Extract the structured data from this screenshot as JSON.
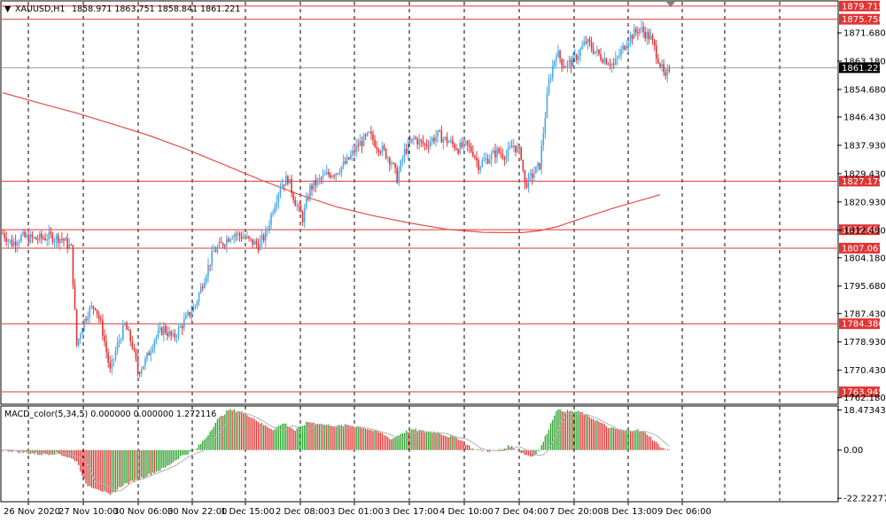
{
  "chart_data": [
    {
      "type": "candlestick",
      "symbol_header": "XAUUSD,H1",
      "ohlc_header": "1858.971 1863.751 1858.841 1861.221",
      "current_price_label": "1861.221",
      "y_ticks": [
        "1871.680",
        "1863.180",
        "1854.680",
        "1846.430",
        "1837.930",
        "1829.430",
        "1820.930",
        "1812.430",
        "1804.180",
        "1795.680",
        "1787.430",
        "1778.930",
        "1770.430",
        "1762.180"
      ],
      "x_tick_labels": [
        "26 Nov 2020",
        "27 Nov 10:00",
        "30 Nov 06:00",
        "30 Nov 22:00",
        "1 Dec 15:00",
        "2 Dec 08:00",
        "3 Dec 01:00",
        "3 Dec 17:00",
        "4 Dec 10:00",
        "7 Dec 04:00",
        "7 Dec 20:00",
        "8 Dec 13:00",
        "9 Dec 06:00"
      ],
      "horizontal_levels": [
        "1879.715",
        "1875.758",
        "1827.179",
        "1812.601",
        "1807.067",
        "1784.386",
        "1763.945"
      ],
      "ylim": [
        1760.5,
        1881.0
      ],
      "up_color": "#4aa8e8",
      "down_color": "#e03535",
      "level_color": "#e03535",
      "ma_color": "#e0504a",
      "ma_points": [
        [
          0,
          1853.7
        ],
        [
          20,
          1850.6
        ],
        [
          40,
          1847.6
        ],
        [
          60,
          1844.2
        ],
        [
          80,
          1840.7
        ],
        [
          100,
          1836.6
        ],
        [
          120,
          1832.0
        ],
        [
          140,
          1827.4
        ],
        [
          160,
          1823.2
        ],
        [
          180,
          1819.5
        ],
        [
          200,
          1816.8
        ],
        [
          220,
          1814.6
        ],
        [
          240,
          1812.7
        ],
        [
          260,
          1811.8
        ],
        [
          280,
          1811.7
        ],
        [
          290,
          1812.3
        ],
        [
          300,
          1813.6
        ],
        [
          310,
          1815.5
        ],
        [
          320,
          1817.3
        ],
        [
          330,
          1819.1
        ],
        [
          340,
          1820.7
        ],
        [
          350,
          1822.3
        ],
        [
          355,
          1823.1
        ]
      ],
      "path_points": [
        [
          0,
          1811.5
        ],
        [
          5,
          1808.5
        ],
        [
          10,
          1810.5
        ],
        [
          15,
          1810.0
        ],
        [
          18,
          1809.8
        ],
        [
          25,
          1810.5
        ],
        [
          32,
          1810.0
        ],
        [
          37,
          1807.0
        ],
        [
          40,
          1778.0
        ],
        [
          43,
          1784.0
        ],
        [
          46,
          1788.0
        ],
        [
          50,
          1790.0
        ],
        [
          54,
          1782.0
        ],
        [
          58,
          1770.0
        ],
        [
          62,
          1778.0
        ],
        [
          66,
          1784.0
        ],
        [
          70,
          1778.0
        ],
        [
          73,
          1770.0
        ],
        [
          77,
          1773.0
        ],
        [
          82,
          1780.0
        ],
        [
          87,
          1783.0
        ],
        [
          92,
          1780.0
        ],
        [
          98,
          1785.0
        ],
        [
          104,
          1790.0
        ],
        [
          110,
          1800.0
        ],
        [
          114,
          1806.0
        ],
        [
          118,
          1808.0
        ],
        [
          124,
          1811.5
        ],
        [
          130,
          1810.5
        ],
        [
          134,
          1809.0
        ],
        [
          138,
          1808.0
        ],
        [
          142,
          1811.0
        ],
        [
          146,
          1819.0
        ],
        [
          150,
          1826.0
        ],
        [
          154,
          1828.0
        ],
        [
          158,
          1821.0
        ],
        [
          162,
          1816.0
        ],
        [
          166,
          1825.0
        ],
        [
          170,
          1827.0
        ],
        [
          175,
          1829.0
        ],
        [
          180,
          1830.0
        ],
        [
          186,
          1833.0
        ],
        [
          192,
          1838.0
        ],
        [
          198,
          1841.0
        ],
        [
          202,
          1838.0
        ],
        [
          206,
          1836.0
        ],
        [
          210,
          1833.0
        ],
        [
          213,
          1828.0
        ],
        [
          217,
          1836.0
        ],
        [
          222,
          1840.0
        ],
        [
          228,
          1838.0
        ],
        [
          235,
          1841.0
        ],
        [
          241,
          1839.0
        ],
        [
          246,
          1837.0
        ],
        [
          250,
          1838.0
        ],
        [
          254,
          1836.0
        ],
        [
          257,
          1832.0
        ],
        [
          262,
          1834.0
        ],
        [
          267,
          1836.0
        ],
        [
          272,
          1835.0
        ],
        [
          276,
          1838.0
        ],
        [
          280,
          1835.0
        ],
        [
          282,
          1826.0
        ],
        [
          286,
          1829.0
        ],
        [
          290,
          1832.0
        ],
        [
          295,
          1857.0
        ],
        [
          299,
          1866.0
        ],
        [
          303,
          1862.0
        ],
        [
          308,
          1863.0
        ],
        [
          315,
          1869.0
        ],
        [
          322,
          1865.0
        ],
        [
          330,
          1862.0
        ],
        [
          338,
          1870.0
        ],
        [
          344,
          1873.0
        ],
        [
          350,
          1870.0
        ],
        [
          354,
          1864.0
        ],
        [
          358,
          1857.5
        ],
        [
          360,
          1861.2
        ]
      ],
      "candles_from_index": 0,
      "candles_step": 1
    },
    {
      "type": "histogram",
      "indicator_label": "MACD_color(5,34,5) 0.000000 0.000000 1.272116",
      "y_ticks": [
        "18.473435",
        "0.00",
        "-22.222771"
      ],
      "ylim": [
        -23.0,
        19.5
      ],
      "up_color": "#2aa02a",
      "down_color": "#e03535",
      "signal_color": "#b0b0b0",
      "macd_points": [
        [
          0,
          0.0
        ],
        [
          10,
          -1.0
        ],
        [
          20,
          -2.0
        ],
        [
          30,
          -1.5
        ],
        [
          40,
          -5.0
        ],
        [
          45,
          -16.0
        ],
        [
          52,
          -18.0
        ],
        [
          58,
          -21.0
        ],
        [
          65,
          -16.0
        ],
        [
          72,
          -14.0
        ],
        [
          80,
          -11.0
        ],
        [
          88,
          -8.0
        ],
        [
          96,
          -3.0
        ],
        [
          104,
          0.0
        ],
        [
          110,
          6.0
        ],
        [
          116,
          14.0
        ],
        [
          122,
          18.5
        ],
        [
          128,
          18.0
        ],
        [
          134,
          15.5
        ],
        [
          140,
          12.0
        ],
        [
          146,
          9.5
        ],
        [
          152,
          12.5
        ],
        [
          158,
          9.0
        ],
        [
          165,
          13.0
        ],
        [
          172,
          12.0
        ],
        [
          180,
          11.0
        ],
        [
          186,
          11.5
        ],
        [
          192,
          11.0
        ],
        [
          198,
          9.5
        ],
        [
          204,
          8.0
        ],
        [
          210,
          5.0
        ],
        [
          216,
          8.0
        ],
        [
          222,
          9.5
        ],
        [
          228,
          8.5
        ],
        [
          234,
          8.5
        ],
        [
          240,
          6.5
        ],
        [
          246,
          5.5
        ],
        [
          250,
          3.0
        ],
        [
          254,
          0.5
        ],
        [
          258,
          0.0
        ],
        [
          264,
          -0.5
        ],
        [
          270,
          0.5
        ],
        [
          274,
          2.0
        ],
        [
          278,
          0.0
        ],
        [
          282,
          -2.0
        ],
        [
          286,
          -3.0
        ],
        [
          290,
          0.0
        ],
        [
          295,
          10.0
        ],
        [
          299,
          18.5
        ],
        [
          305,
          18.0
        ],
        [
          312,
          17.5
        ],
        [
          320,
          14.0
        ],
        [
          328,
          10.0
        ],
        [
          336,
          9.0
        ],
        [
          342,
          9.5
        ],
        [
          348,
          7.5
        ],
        [
          354,
          2.5
        ],
        [
          358,
          0.0
        ],
        [
          360,
          0.5
        ]
      ]
    }
  ]
}
